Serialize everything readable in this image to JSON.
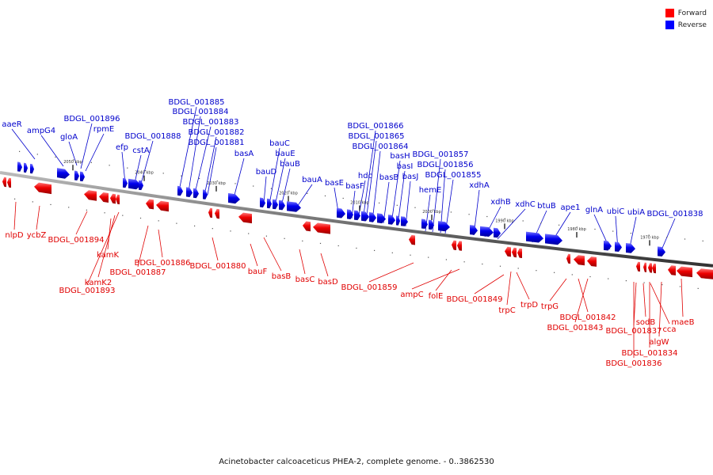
{
  "legend": {
    "forward": {
      "label": "Forward",
      "color": "#ff0000"
    },
    "reverse": {
      "label": "Reverse",
      "color": "#0000ff"
    }
  },
  "caption": "Acinetobacter calcoaceticus PHEA-2, complete genome. - 0..3862530",
  "ticks": [
    "2050 kbp",
    "2040 kbp",
    "2030 kbp",
    "2020 kbp",
    "2010 kbp",
    "2000 kbp",
    "1990 kbp",
    "1980 kbp",
    "1970 kbp"
  ],
  "genes": [
    {
      "name": "aaeR",
      "strand": "reverse"
    },
    {
      "name": "ampG4",
      "strand": "reverse"
    },
    {
      "name": "gloA",
      "strand": "reverse"
    },
    {
      "name": "BDGL_001896",
      "strand": "reverse"
    },
    {
      "name": "rpmE",
      "strand": "reverse"
    },
    {
      "name": "efp",
      "strand": "reverse"
    },
    {
      "name": "cstA",
      "strand": "reverse"
    },
    {
      "name": "BDGL_001888",
      "strand": "reverse"
    },
    {
      "name": "BDGL_001885",
      "strand": "reverse"
    },
    {
      "name": "BDGL_001884",
      "strand": "reverse"
    },
    {
      "name": "BDGL_001883",
      "strand": "reverse"
    },
    {
      "name": "BDGL_001882",
      "strand": "reverse"
    },
    {
      "name": "BDGL_001881",
      "strand": "reverse"
    },
    {
      "name": "basA",
      "strand": "reverse"
    },
    {
      "name": "bauD",
      "strand": "reverse"
    },
    {
      "name": "bauC",
      "strand": "reverse"
    },
    {
      "name": "bauE",
      "strand": "reverse"
    },
    {
      "name": "bauB",
      "strand": "reverse"
    },
    {
      "name": "bauA",
      "strand": "reverse"
    },
    {
      "name": "basE",
      "strand": "reverse"
    },
    {
      "name": "basF",
      "strand": "reverse"
    },
    {
      "name": "hdc",
      "strand": "reverse"
    },
    {
      "name": "BDGL_001866",
      "strand": "reverse"
    },
    {
      "name": "BDGL_001865",
      "strand": "reverse"
    },
    {
      "name": "BDGL_001864",
      "strand": "reverse"
    },
    {
      "name": "basB",
      "strand": "reverse"
    },
    {
      "name": "basH",
      "strand": "reverse"
    },
    {
      "name": "basI",
      "strand": "reverse"
    },
    {
      "name": "basJ",
      "strand": "reverse"
    },
    {
      "name": "hemE",
      "strand": "reverse"
    },
    {
      "name": "BDGL_001857",
      "strand": "reverse"
    },
    {
      "name": "BDGL_001856",
      "strand": "reverse"
    },
    {
      "name": "BDGL_001855",
      "strand": "reverse"
    },
    {
      "name": "xdhA",
      "strand": "reverse"
    },
    {
      "name": "xdhB",
      "strand": "reverse"
    },
    {
      "name": "xdhC",
      "strand": "reverse"
    },
    {
      "name": "btuB",
      "strand": "reverse"
    },
    {
      "name": "ape1",
      "strand": "reverse"
    },
    {
      "name": "glnA",
      "strand": "reverse"
    },
    {
      "name": "ubiC",
      "strand": "reverse"
    },
    {
      "name": "ubiA",
      "strand": "reverse"
    },
    {
      "name": "BDGL_001838",
      "strand": "reverse"
    },
    {
      "name": "nlpD",
      "strand": "forward"
    },
    {
      "name": "ycbZ",
      "strand": "forward"
    },
    {
      "name": "BDGL_001894",
      "strand": "forward"
    },
    {
      "name": "kamK",
      "strand": "forward"
    },
    {
      "name": "kamK2",
      "strand": "forward"
    },
    {
      "name": "BDGL_001893",
      "strand": "forward"
    },
    {
      "name": "BDGL_001886",
      "strand": "forward"
    },
    {
      "name": "BDGL_001887",
      "strand": "forward"
    },
    {
      "name": "BDGL_001880",
      "strand": "forward"
    },
    {
      "name": "bauF",
      "strand": "forward"
    },
    {
      "name": "basB",
      "strand": "forward"
    },
    {
      "name": "basC",
      "strand": "forward"
    },
    {
      "name": "basD",
      "strand": "forward"
    },
    {
      "name": "BDGL_001859",
      "strand": "forward"
    },
    {
      "name": "ampC",
      "strand": "forward"
    },
    {
      "name": "folE",
      "strand": "forward"
    },
    {
      "name": "BDGL_001849",
      "strand": "forward"
    },
    {
      "name": "trpC",
      "strand": "forward"
    },
    {
      "name": "trpD",
      "strand": "forward"
    },
    {
      "name": "trpG",
      "strand": "forward"
    },
    {
      "name": "BDGL_001842",
      "strand": "forward"
    },
    {
      "name": "BDGL_001843",
      "strand": "forward"
    },
    {
      "name": "BDGL_001837",
      "strand": "forward"
    },
    {
      "name": "sodB",
      "strand": "forward"
    },
    {
      "name": "cca",
      "strand": "forward"
    },
    {
      "name": "algW",
      "strand": "forward"
    },
    {
      "name": "BDGL_001834",
      "strand": "forward"
    },
    {
      "name": "BDGL_001836",
      "strand": "forward"
    },
    {
      "name": "maeB",
      "strand": "forward"
    }
  ]
}
